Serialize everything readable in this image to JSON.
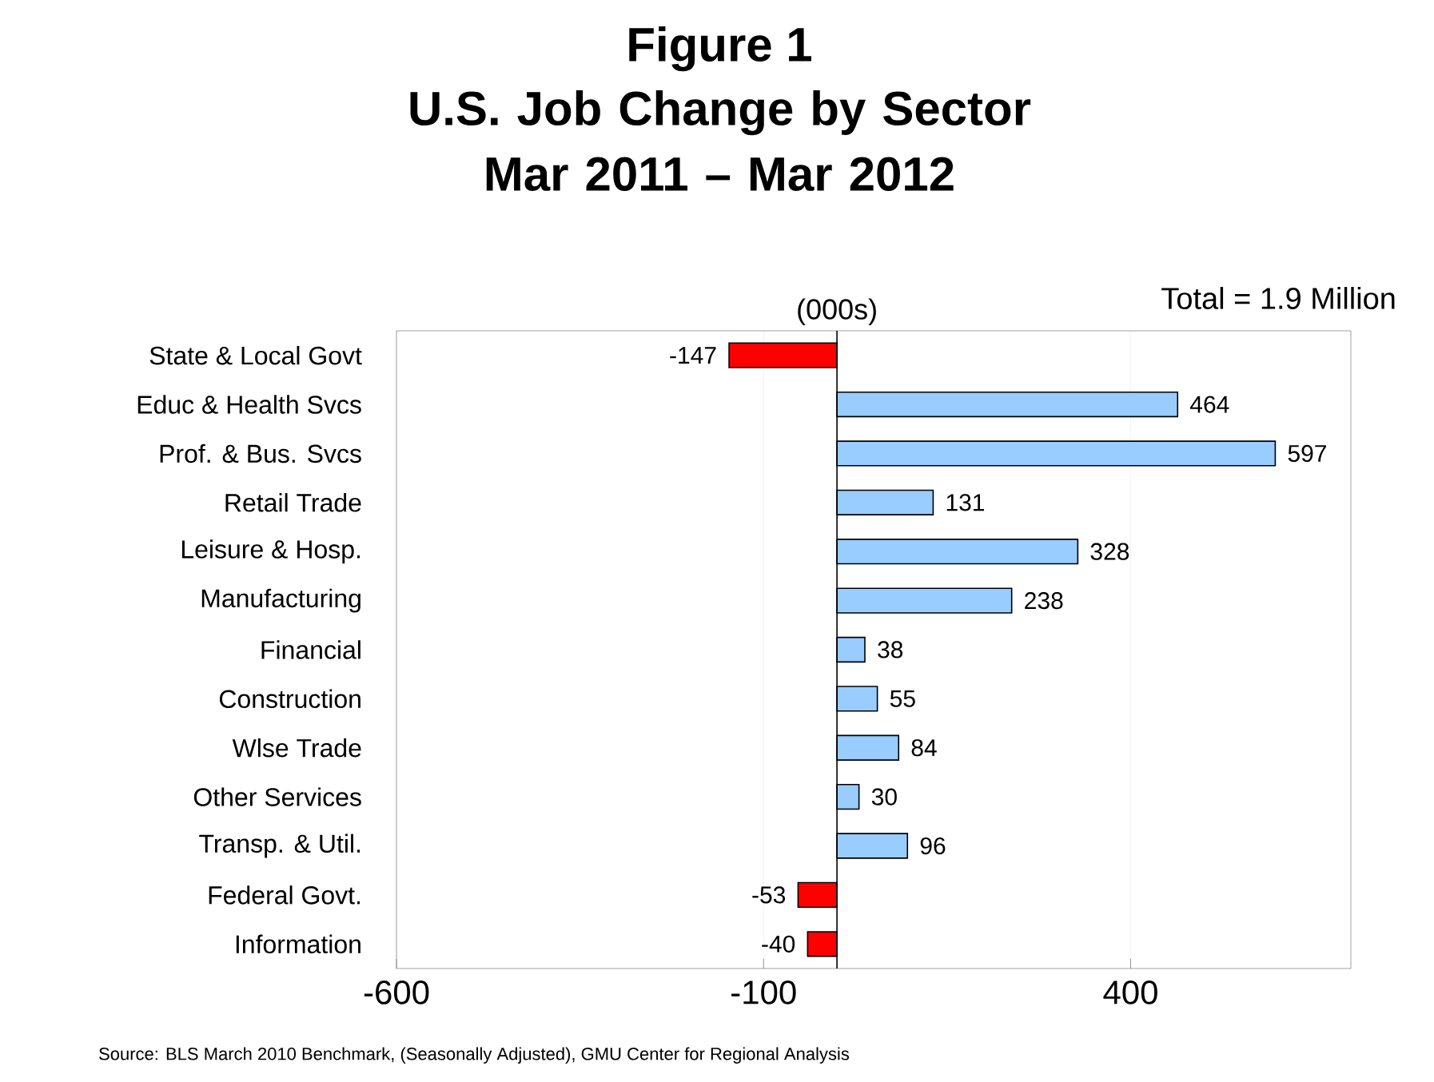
{
  "chart_data": {
    "type": "bar",
    "orientation": "horizontal",
    "title": "Figure 1",
    "subtitle": "U.S. Job Change by Sector Mar 2011 – Mar 2012",
    "xlabel": "(000s)",
    "categories": [
      "State & Local Govt",
      "Educ & Health Svcs",
      "Prof. & Bus. Svcs",
      "Retail Trade",
      "Leisure & Hosp.",
      "Manufacturing",
      "Financial",
      "Construction",
      "Wlse Trade",
      "Other Services",
      "Transp. & Util.",
      "Federal Govt.",
      "Information"
    ],
    "values": [
      -147,
      464,
      597,
      131,
      328,
      238,
      38,
      55,
      84,
      30,
      96,
      -53,
      -40
    ],
    "colors": [
      "#ff0000",
      "#99ccff",
      "#99ccff",
      "#99ccff",
      "#99ccff",
      "#99ccff",
      "#99ccff",
      "#99ccff",
      "#99ccff",
      "#99ccff",
      "#99ccff",
      "#ff0000",
      "#ff0000"
    ],
    "xlim": [
      -600,
      700
    ],
    "xticks": [
      -600,
      -100,
      400
    ],
    "grid": "x",
    "data_labels": true,
    "annotations": [
      "Total = 1.9 Million",
      "Source: BLS March 2010 Benchmark, (Seasonally Adjusted), GMU Center for Regional Analysis"
    ]
  }
}
